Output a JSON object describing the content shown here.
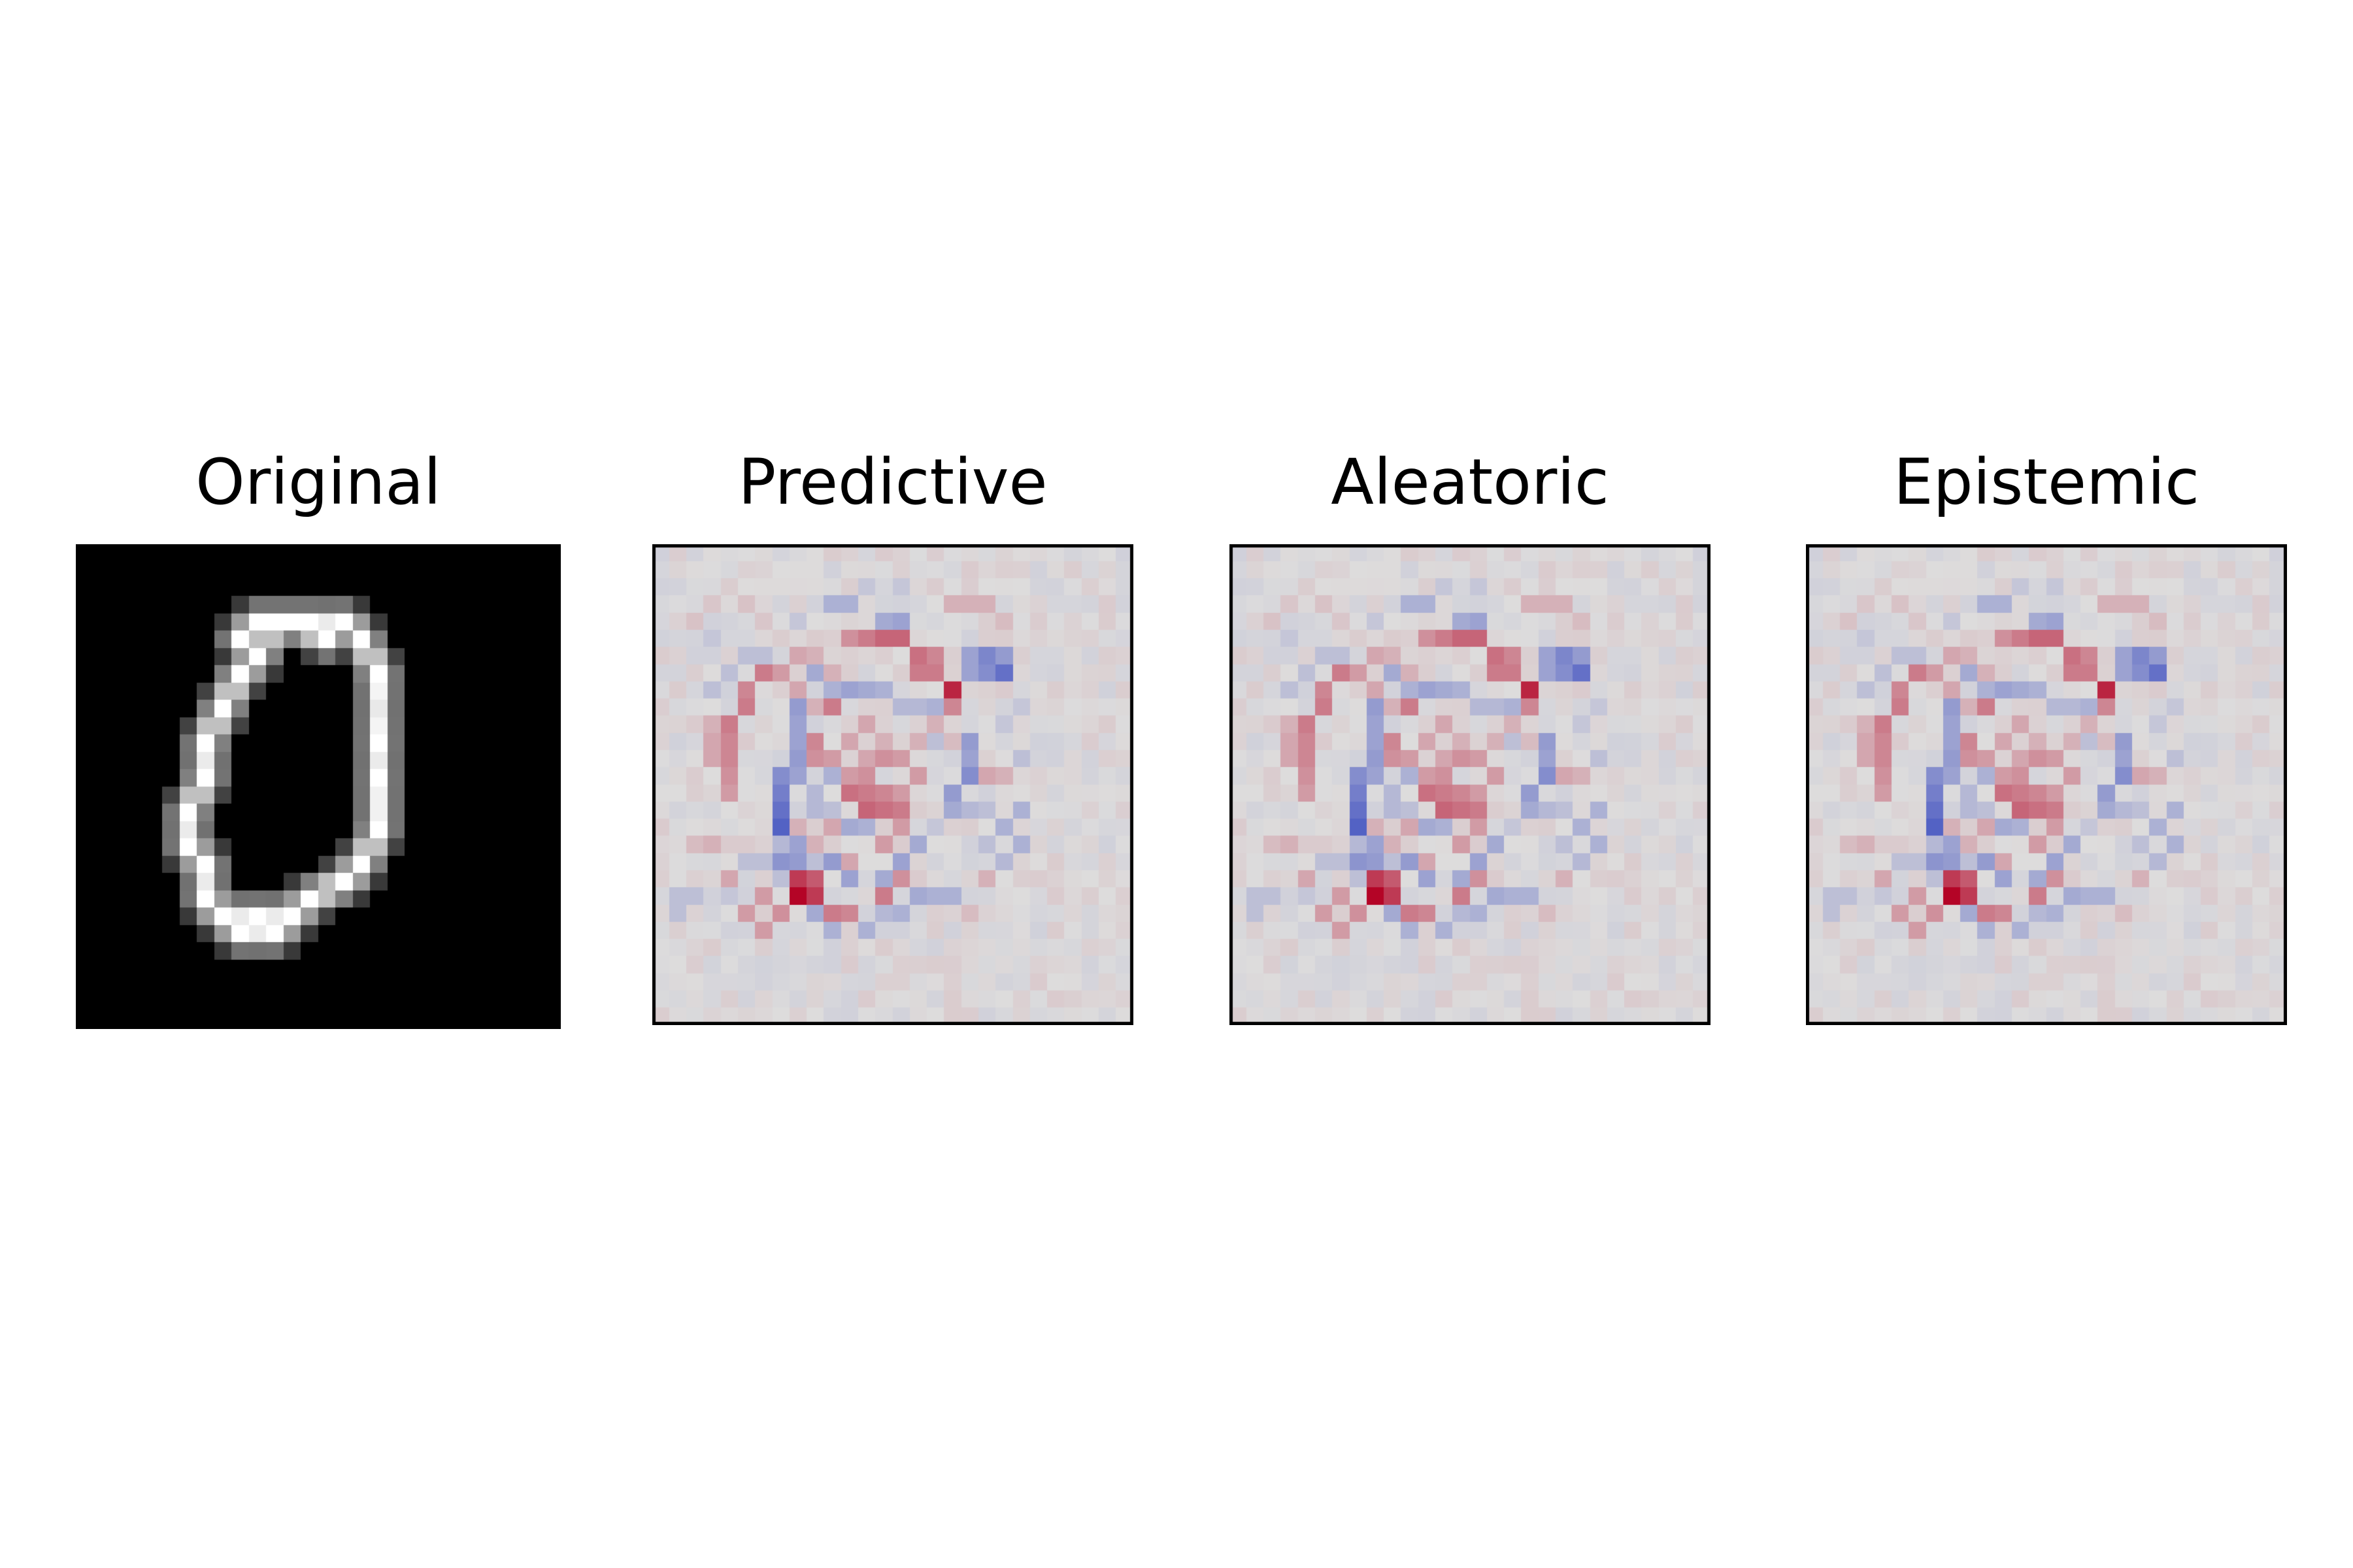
{
  "figure": {
    "panels": [
      {
        "title": "Original",
        "colormap": "gray",
        "frame": false
      },
      {
        "title": "Predictive",
        "colormap": "coolwarm",
        "frame": true
      },
      {
        "title": "Aleatoric",
        "colormap": "coolwarm",
        "frame": true
      },
      {
        "title": "Epistemic",
        "colormap": "coolwarm",
        "frame": true
      }
    ]
  },
  "images": {
    "grid_size": 28,
    "original_strokes": [
      [
        [
          6,
          15
        ],
        [
          6,
          17
        ],
        [
          7,
          18
        ]
      ],
      [
        [
          7,
          18
        ],
        [
          7,
          20
        ],
        [
          8,
          21
        ],
        [
          10,
          21
        ],
        [
          12,
          21
        ]
      ],
      [
        [
          12,
          21
        ],
        [
          13,
          20
        ],
        [
          15,
          19
        ],
        [
          16,
          18
        ],
        [
          17,
          16
        ]
      ],
      [
        [
          17,
          16
        ],
        [
          17,
          13
        ],
        [
          17,
          11
        ],
        [
          17,
          7
        ]
      ],
      [
        [
          17,
          7
        ],
        [
          16,
          5
        ],
        [
          15,
          4
        ],
        [
          13,
          4
        ],
        [
          11,
          4
        ]
      ],
      [
        [
          11,
          4
        ],
        [
          10,
          6
        ],
        [
          9,
          7
        ],
        [
          8,
          9
        ]
      ],
      [
        [
          8,
          9
        ],
        [
          7,
          11
        ],
        [
          7,
          13
        ],
        [
          6,
          15
        ]
      ],
      [
        [
          8,
          21
        ],
        [
          9,
          22
        ],
        [
          11,
          22
        ],
        [
          12,
          21
        ]
      ],
      [
        [
          16,
          18
        ],
        [
          15,
          19
        ],
        [
          13,
          20
        ]
      ],
      [
        [
          9,
          5
        ],
        [
          10,
          4
        ],
        [
          12,
          4
        ],
        [
          14,
          5
        ]
      ]
    ],
    "attribution_points": [
      [
        8,
        20,
        1.0
      ],
      [
        8,
        19,
        0.75
      ],
      [
        9,
        20,
        0.75
      ],
      [
        9,
        19,
        0.6
      ],
      [
        10,
        21,
        0.45
      ],
      [
        11,
        21,
        0.4
      ],
      [
        7,
        21,
        0.35
      ],
      [
        6,
        22,
        0.3
      ],
      [
        13,
        20,
        0.45
      ],
      [
        14,
        19,
        0.35
      ],
      [
        12,
        19,
        0.3
      ],
      [
        11,
        14,
        0.5
      ],
      [
        12,
        14,
        0.45
      ],
      [
        13,
        14,
        0.4
      ],
      [
        12,
        15,
        0.55
      ],
      [
        13,
        15,
        0.5
      ],
      [
        14,
        15,
        0.45
      ],
      [
        12,
        13,
        0.35
      ],
      [
        14,
        14,
        0.3
      ],
      [
        11,
        13,
        0.3
      ],
      [
        15,
        13,
        0.3
      ],
      [
        9,
        11,
        0.4
      ],
      [
        9,
        12,
        0.35
      ],
      [
        10,
        12,
        0.3
      ],
      [
        13,
        5,
        0.55
      ],
      [
        14,
        5,
        0.55
      ],
      [
        15,
        6,
        0.5
      ],
      [
        15,
        7,
        0.45
      ],
      [
        16,
        7,
        0.45
      ],
      [
        12,
        5,
        0.45
      ],
      [
        11,
        5,
        0.35
      ],
      [
        17,
        8,
        0.85
      ],
      [
        17,
        9,
        0.4
      ],
      [
        16,
        6,
        0.4
      ],
      [
        6,
        7,
        0.45
      ],
      [
        5,
        8,
        0.4
      ],
      [
        5,
        9,
        0.45
      ],
      [
        4,
        10,
        0.45
      ],
      [
        4,
        11,
        0.4
      ],
      [
        4,
        12,
        0.4
      ],
      [
        4,
        13,
        0.35
      ],
      [
        4,
        14,
        0.3
      ],
      [
        3,
        11,
        0.25
      ],
      [
        3,
        12,
        0.25
      ],
      [
        3,
        10,
        0.2
      ],
      [
        7,
        17,
        0.3
      ],
      [
        7,
        19,
        0.3
      ],
      [
        6,
        20,
        0.3
      ],
      [
        5,
        21,
        0.3
      ],
      [
        4,
        19,
        0.25
      ],
      [
        10,
        9,
        0.45
      ],
      [
        13,
        17,
        0.3
      ],
      [
        14,
        16,
        0.3
      ],
      [
        9,
        17,
        0.2
      ],
      [
        19,
        13,
        0.25
      ],
      [
        20,
        13,
        0.2
      ],
      [
        18,
        12,
        0.2
      ],
      [
        8,
        16,
        0.2
      ],
      [
        11,
        18,
        0.25
      ],
      [
        15,
        11,
        0.2
      ],
      [
        10,
        7,
        0.2
      ],
      [
        7,
        7,
        0.3
      ],
      [
        8,
        6,
        0.25
      ],
      [
        9,
        6,
        0.2
      ],
      [
        14,
        12,
        0.3
      ],
      [
        13,
        12,
        0.35
      ],
      [
        12,
        12,
        0.25
      ],
      [
        19,
        3,
        0.2
      ],
      [
        18,
        3,
        0.2
      ],
      [
        17,
        3,
        0.2
      ],
      [
        20,
        4,
        0.15
      ],
      [
        3,
        17,
        0.2
      ],
      [
        2,
        17,
        0.15
      ],
      [
        18,
        21,
        0.15
      ],
      [
        19,
        19,
        0.2
      ],
      [
        10,
        16,
        0.25
      ],
      [
        9,
        18,
        0.25
      ],
      [
        16,
        16,
        0.2
      ],
      [
        3,
        3,
        0.1
      ],
      [
        2,
        4,
        0.12
      ],
      [
        5,
        3,
        0.12
      ],
      [
        6,
        4,
        0.1
      ],
      [
        8,
        8,
        0.25
      ],
      [
        9,
        9,
        0.2
      ],
      [
        12,
        10,
        0.25
      ],
      [
        11,
        11,
        0.25
      ],
      [
        13,
        11,
        0.2
      ],
      [
        16,
        10,
        0.2
      ],
      [
        17,
        11,
        0.15
      ]
    ],
    "attribution_negative": [
      [
        7,
        16,
        0.85
      ],
      [
        7,
        15,
        0.75
      ],
      [
        7,
        14,
        0.65
      ],
      [
        7,
        13,
        0.55
      ],
      [
        7,
        17,
        0.55
      ],
      [
        7,
        18,
        0.5
      ],
      [
        7,
        19,
        0.5
      ],
      [
        8,
        18,
        0.45
      ],
      [
        8,
        17,
        0.4
      ],
      [
        8,
        13,
        0.4
      ],
      [
        8,
        12,
        0.45
      ],
      [
        8,
        11,
        0.4
      ],
      [
        8,
        10,
        0.4
      ],
      [
        8,
        9,
        0.45
      ],
      [
        9,
        18,
        0.45
      ],
      [
        10,
        18,
        0.45
      ],
      [
        11,
        19,
        0.4
      ],
      [
        12,
        19,
        0.35
      ],
      [
        13,
        19,
        0.35
      ],
      [
        14,
        18,
        0.4
      ],
      [
        15,
        17,
        0.35
      ],
      [
        16,
        16,
        0.35
      ],
      [
        17,
        15,
        0.35
      ],
      [
        17,
        14,
        0.45
      ],
      [
        18,
        13,
        0.55
      ],
      [
        18,
        12,
        0.6
      ],
      [
        18,
        11,
        0.45
      ],
      [
        19,
        7,
        0.55
      ],
      [
        20,
        7,
        0.75
      ],
      [
        19,
        6,
        0.6
      ],
      [
        20,
        6,
        0.45
      ],
      [
        18,
        6,
        0.4
      ],
      [
        18,
        7,
        0.4
      ],
      [
        14,
        4,
        0.4
      ],
      [
        13,
        4,
        0.35
      ],
      [
        11,
        3,
        0.3
      ],
      [
        10,
        3,
        0.3
      ],
      [
        9,
        7,
        0.35
      ],
      [
        10,
        8,
        0.3
      ],
      [
        11,
        8,
        0.4
      ],
      [
        12,
        8,
        0.35
      ],
      [
        13,
        8,
        0.3
      ],
      [
        14,
        9,
        0.25
      ],
      [
        10,
        13,
        0.3
      ],
      [
        9,
        14,
        0.25
      ],
      [
        11,
        16,
        0.35
      ],
      [
        12,
        16,
        0.3
      ],
      [
        15,
        20,
        0.35
      ],
      [
        16,
        20,
        0.3
      ],
      [
        17,
        20,
        0.3
      ],
      [
        14,
        21,
        0.3
      ],
      [
        13,
        21,
        0.25
      ],
      [
        9,
        21,
        0.35
      ],
      [
        10,
        22,
        0.3
      ],
      [
        12,
        22,
        0.3
      ],
      [
        20,
        16,
        0.3
      ],
      [
        21,
        15,
        0.3
      ],
      [
        21,
        17,
        0.3
      ],
      [
        20,
        18,
        0.25
      ],
      [
        19,
        17,
        0.2
      ],
      [
        1,
        21,
        0.2
      ],
      [
        2,
        20,
        0.2
      ],
      [
        1,
        20,
        0.2
      ],
      [
        21,
        12,
        0.2
      ],
      [
        3,
        8,
        0.2
      ],
      [
        4,
        7,
        0.2
      ],
      [
        5,
        6,
        0.2
      ],
      [
        6,
        6,
        0.2
      ],
      [
        15,
        9,
        0.25
      ],
      [
        16,
        9,
        0.3
      ],
      [
        16,
        11,
        0.2
      ],
      [
        9,
        15,
        0.25
      ],
      [
        10,
        15,
        0.2
      ],
      [
        6,
        18,
        0.2
      ],
      [
        5,
        18,
        0.2
      ],
      [
        4,
        20,
        0.15
      ],
      [
        18,
        15,
        0.25
      ],
      [
        19,
        15,
        0.2
      ],
      [
        12,
        2,
        0.15
      ],
      [
        14,
        2,
        0.15
      ],
      [
        8,
        4,
        0.15
      ],
      [
        3,
        5,
        0.15
      ],
      [
        20,
        10,
        0.15
      ],
      [
        21,
        9,
        0.15
      ]
    ]
  }
}
